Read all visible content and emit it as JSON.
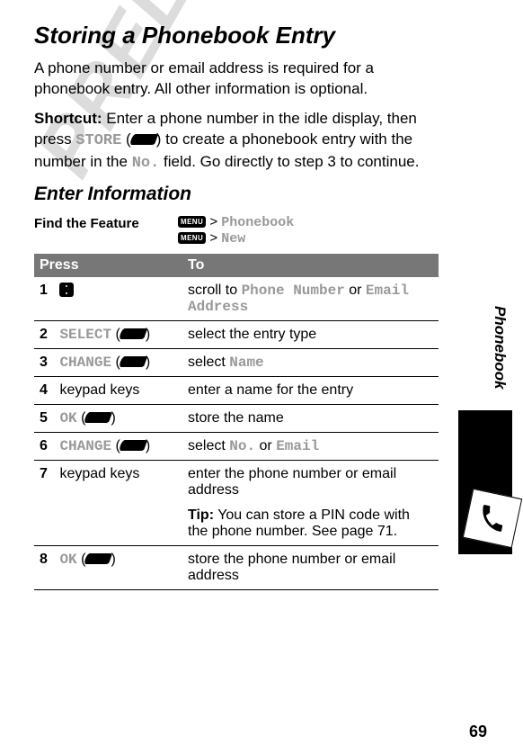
{
  "title": "Storing a Phonebook Entry",
  "intro": "A phone number or email address is required for a phonebook entry. All other information is optional.",
  "shortcut_label": "Shortcut:",
  "shortcut_pre": " Enter a phone number in the idle display, then press ",
  "shortcut_store": "STORE",
  "shortcut_mid": " to create a phonebook entry with the number in the ",
  "shortcut_no": "No.",
  "shortcut_post": " field. Go directly to step 3 to continue.",
  "subtitle": "Enter Information",
  "feature_label": "Find the Feature",
  "feature_line1_code": "Phonebook",
  "feature_line2_code": "New",
  "gt": ">",
  "menu_label": "MENU",
  "table": {
    "head_press": "Press",
    "head_to": "To",
    "rows": [
      {
        "n": "1",
        "press_type": "nav",
        "press_text": "",
        "to_parts": [
          "scroll to ",
          "Phone Number",
          " or ",
          "Email Address"
        ]
      },
      {
        "n": "2",
        "press_type": "soft",
        "press_text": "SELECT",
        "to_parts": [
          "select the entry type"
        ]
      },
      {
        "n": "3",
        "press_type": "soft",
        "press_text": "CHANGE",
        "to_parts": [
          "select ",
          "Name"
        ]
      },
      {
        "n": "4",
        "press_type": "text",
        "press_text": "keypad keys",
        "to_parts": [
          "enter a name for the entry"
        ]
      },
      {
        "n": "5",
        "press_type": "soft",
        "press_text": "OK",
        "to_parts": [
          "store the name"
        ]
      },
      {
        "n": "6",
        "press_type": "soft",
        "press_text": "CHANGE",
        "to_parts": [
          "select ",
          "No.",
          " or ",
          "Email"
        ]
      },
      {
        "n": "7",
        "press_type": "text",
        "press_text": "keypad keys",
        "to_parts": [
          "enter the phone number or email address"
        ],
        "tip_label": "Tip:",
        "tip_text": " You can store a PIN code with the phone number. See page 71."
      },
      {
        "n": "8",
        "press_type": "soft",
        "press_text": "OK",
        "to_parts": [
          "store the phone number or email address"
        ]
      }
    ]
  },
  "watermark": "PRELIMINARY",
  "side_tab": "Phonebook",
  "page_number": "69",
  "colors": {
    "header_bg": "#777777",
    "code_color": "#999999",
    "watermark_color": "#dcdcdc"
  }
}
